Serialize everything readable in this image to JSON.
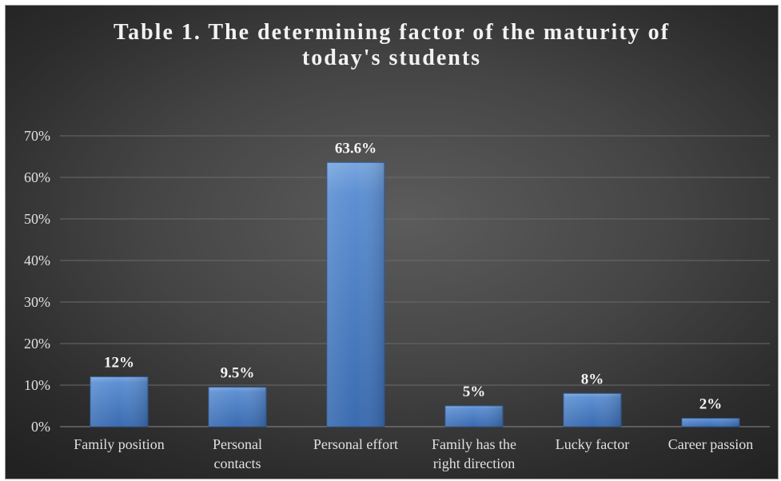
{
  "chart_data": {
    "type": "bar",
    "title_lines": [
      "Table 1. The determining factor of the maturity of",
      "today's students"
    ],
    "categories": [
      [
        "Family position"
      ],
      [
        "Personal",
        "contacts"
      ],
      [
        "Personal effort"
      ],
      [
        "Family has the",
        "right direction"
      ],
      [
        "Lucky factor"
      ],
      [
        "Career passion"
      ]
    ],
    "values": [
      12,
      9.5,
      63.6,
      5,
      8,
      2
    ],
    "data_labels": [
      "12%",
      "9.5%",
      "63.6%",
      "5%",
      "8%",
      "2%"
    ],
    "ylim": [
      0,
      70
    ],
    "yticks": [
      0,
      10,
      20,
      30,
      40,
      50,
      60,
      70
    ],
    "ytick_labels": [
      "0%",
      "10%",
      "20%",
      "30%",
      "40%",
      "50%",
      "60%",
      "70%"
    ],
    "grid": true,
    "legend": "none",
    "colors": {
      "bar_top": "#7aa7df",
      "bar_mid": "#4f83c8",
      "bar_bottom": "#3a6bb0"
    }
  }
}
